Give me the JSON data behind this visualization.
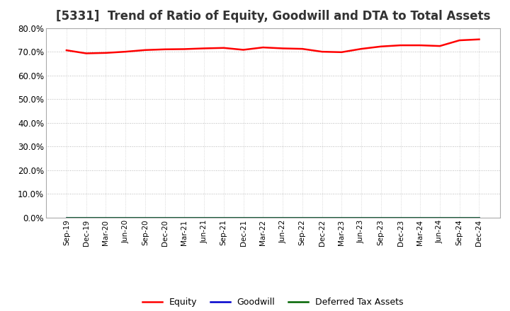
{
  "title": "[5331]  Trend of Ratio of Equity, Goodwill and DTA to Total Assets",
  "x_labels": [
    "Sep-19",
    "Dec-19",
    "Mar-20",
    "Jun-20",
    "Sep-20",
    "Dec-20",
    "Mar-21",
    "Jun-21",
    "Sep-21",
    "Dec-21",
    "Mar-22",
    "Jun-22",
    "Sep-22",
    "Dec-22",
    "Mar-23",
    "Jun-23",
    "Sep-23",
    "Dec-23",
    "Mar-24",
    "Jun-24",
    "Sep-24",
    "Dec-24"
  ],
  "equity": [
    0.706,
    0.693,
    0.695,
    0.7,
    0.707,
    0.71,
    0.711,
    0.714,
    0.716,
    0.708,
    0.718,
    0.714,
    0.712,
    0.7,
    0.698,
    0.712,
    0.722,
    0.727,
    0.727,
    0.724,
    0.748,
    0.752
  ],
  "goodwill": [
    0.0,
    0.0,
    0.0,
    0.0,
    0.0,
    0.0,
    0.0,
    0.0,
    0.0,
    0.0,
    0.0,
    0.0,
    0.0,
    0.0,
    0.0,
    0.0,
    0.0,
    0.0,
    0.0,
    0.0,
    0.0,
    0.0
  ],
  "dta": [
    0.0,
    0.0,
    0.0,
    0.0,
    0.0,
    0.0,
    0.0,
    0.0,
    0.0,
    0.0,
    0.0,
    0.0,
    0.0,
    0.0,
    0.0,
    0.0,
    0.0,
    0.0,
    0.0,
    0.0,
    0.0,
    0.0
  ],
  "equity_color": "#FF0000",
  "goodwill_color": "#0000CD",
  "dta_color": "#006400",
  "ylim": [
    0.0,
    0.8
  ],
  "yticks": [
    0.0,
    0.1,
    0.2,
    0.3,
    0.4,
    0.5,
    0.6,
    0.7,
    0.8
  ],
  "background_color": "#FFFFFF",
  "plot_bg_color": "#FFFFFF",
  "grid_color": "#888888",
  "title_fontsize": 12,
  "legend_labels": [
    "Equity",
    "Goodwill",
    "Deferred Tax Assets"
  ]
}
